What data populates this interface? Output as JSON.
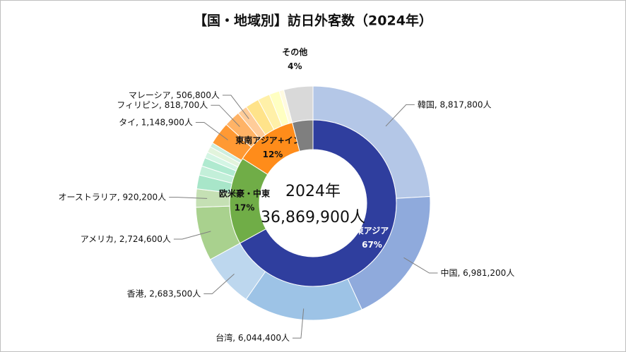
{
  "chart_data": {
    "type": "double-donut",
    "title": "【国・地域別】訪日外客数（2024年）",
    "center_labels": [
      "2024年",
      "36,869,900人"
    ],
    "inner": {
      "categories": [
        "東アジア",
        "欧米豪・中東",
        "東南アジア+インド",
        "その他"
      ],
      "values": [
        67,
        17,
        12,
        4
      ],
      "value_labels": [
        "67%",
        "17%",
        "12%",
        "4%"
      ],
      "colors": [
        "#2f3e9e",
        "#70ad47",
        "#ff8c1a",
        "#7f7f7f"
      ]
    },
    "outer": {
      "categories": [
        "韓国",
        "中国",
        "台湾",
        "香港",
        "アメリカ",
        "オーストラリア",
        null,
        null,
        null,
        null,
        null,
        null,
        "タイ",
        "フィリピン",
        "マレーシア",
        null,
        null,
        null,
        null,
        null
      ],
      "values": [
        8817800,
        6981200,
        6044400,
        2683500,
        2724600,
        920200,
        700000,
        468000,
        436000,
        305000,
        302000,
        222000,
        1148900,
        818700,
        506800,
        691300,
        616600,
        517600,
        233100,
        1470000
      ],
      "value_labels": [
        "8,817,800人",
        "6,981,200人",
        "6,044,400人",
        "2,683,500人",
        "2,724,600人",
        "920,200人",
        null,
        null,
        null,
        null,
        null,
        null,
        "1,148,900人",
        "818,700人",
        "506,800人",
        null,
        null,
        null,
        null,
        null
      ],
      "colors": [
        "#b4c7e7",
        "#8faadc",
        "#9dc3e6",
        "#bdd7ee",
        "#a9d18e",
        "#c5e0b4",
        "#a8e6c9",
        "#c3efd9",
        "#b0ead0",
        "#d4f5e4",
        "#e2f4dc",
        "#cdeede",
        "#ff9933",
        "#ffb366",
        "#ffcc99",
        "#ffe38a",
        "#fff0a8",
        "#ffffc2",
        "#fffae0",
        "#d9d9d9"
      ]
    }
  }
}
